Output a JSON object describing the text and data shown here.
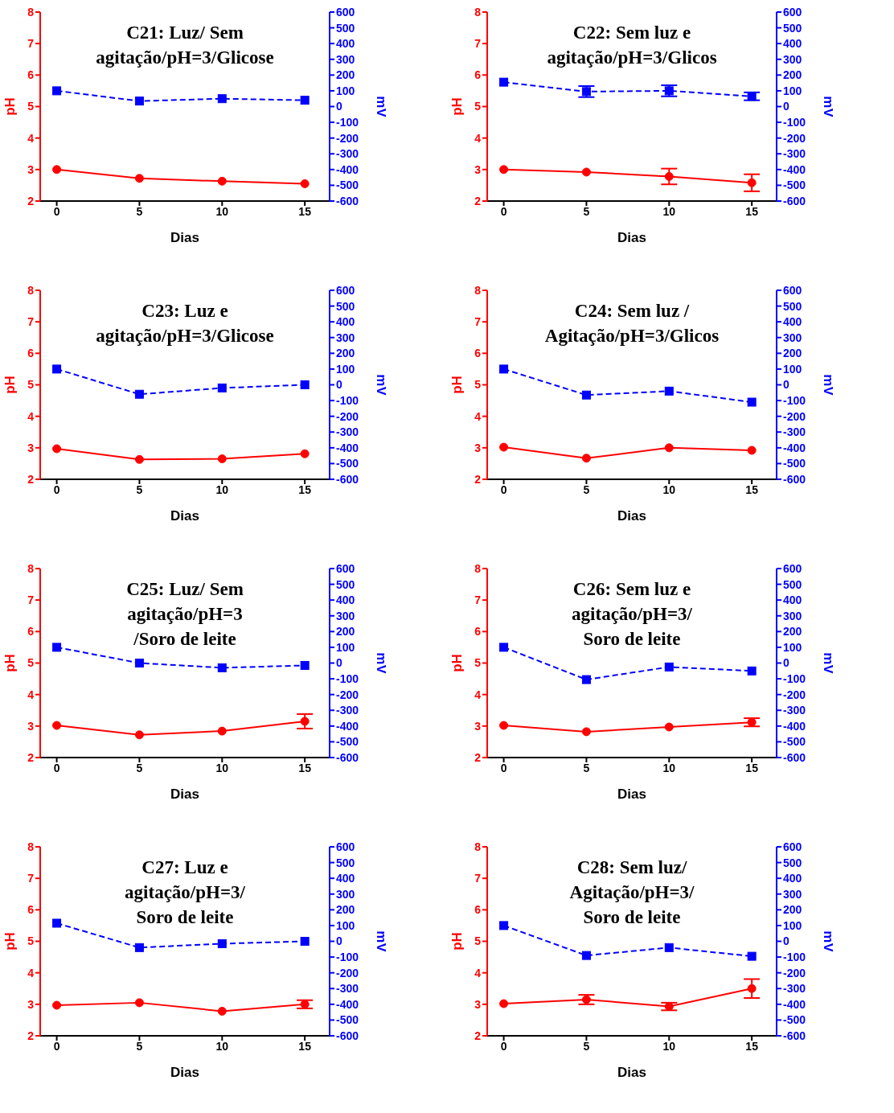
{
  "chart_data": [
    {
      "type": "line",
      "title": "C21: Luz/ Sem\nagitação/pH=3/Glicose",
      "xlabel": "Dias",
      "ylabel": "pH",
      "y2label": "mV",
      "x": [
        0,
        5,
        10,
        15
      ],
      "xlim": [
        -1,
        16.5
      ],
      "xticks": [
        0,
        5,
        10,
        15
      ],
      "ylim": [
        2,
        8
      ],
      "yticks": [
        2,
        3,
        4,
        5,
        6,
        7,
        8
      ],
      "y2lim": [
        -600,
        600
      ],
      "y2ticks": [
        -600,
        -500,
        -400,
        -300,
        -200,
        -100,
        0,
        100,
        200,
        300,
        400,
        500,
        600
      ],
      "grid": false,
      "legend": false,
      "series": [
        {
          "color": "#ff0000",
          "marker": "circle",
          "line_style": "solid",
          "values": [
            3.0,
            2.72,
            2.63,
            2.55
          ]
        },
        {
          "color": "#0000ff",
          "marker": "square",
          "line_style": "dashed",
          "axis": "y2",
          "values": [
            100,
            35,
            50,
            40
          ]
        }
      ]
    },
    {
      "type": "line",
      "title": "C22: Sem luz e\nagitação/pH=3/Glicos",
      "xlabel": "Dias",
      "ylabel": "pH",
      "y2label": "mV",
      "x": [
        0,
        5,
        10,
        15
      ],
      "xlim": [
        -1,
        16.5
      ],
      "xticks": [
        0,
        5,
        10,
        15
      ],
      "ylim": [
        2,
        8
      ],
      "yticks": [
        2,
        3,
        4,
        5,
        6,
        7,
        8
      ],
      "y2lim": [
        -600,
        600
      ],
      "y2ticks": [
        -600,
        -500,
        -400,
        -300,
        -200,
        -100,
        0,
        100,
        200,
        300,
        400,
        500,
        600
      ],
      "grid": false,
      "legend": false,
      "series": [
        {
          "color": "#ff0000",
          "marker": "circle",
          "line_style": "solid",
          "values": [
            3.0,
            2.92,
            2.78,
            2.58
          ],
          "errors": [
            null,
            null,
            0.25,
            0.27
          ]
        },
        {
          "color": "#0000ff",
          "marker": "square",
          "line_style": "dashed",
          "axis": "y2",
          "values": [
            155,
            95,
            100,
            65
          ],
          "errors": [
            null,
            35,
            35,
            25
          ]
        }
      ]
    },
    {
      "type": "line",
      "title": "C23: Luz e\nagitação/pH=3/Glicose",
      "xlabel": "Dias",
      "ylabel": "pH",
      "y2label": "mV",
      "x": [
        0,
        5,
        10,
        15
      ],
      "xlim": [
        -1,
        16.5
      ],
      "xticks": [
        0,
        5,
        10,
        15
      ],
      "ylim": [
        2,
        8
      ],
      "yticks": [
        2,
        3,
        4,
        5,
        6,
        7,
        8
      ],
      "y2lim": [
        -600,
        600
      ],
      "y2ticks": [
        -600,
        -500,
        -400,
        -300,
        -200,
        -100,
        0,
        100,
        200,
        300,
        400,
        500,
        600
      ],
      "grid": false,
      "legend": false,
      "series": [
        {
          "color": "#ff0000",
          "marker": "circle",
          "line_style": "solid",
          "values": [
            2.97,
            2.63,
            2.65,
            2.81
          ]
        },
        {
          "color": "#0000ff",
          "marker": "square",
          "line_style": "dashed",
          "axis": "y2",
          "values": [
            100,
            -60,
            -20,
            0
          ]
        }
      ]
    },
    {
      "type": "line",
      "title": "C24: Sem luz /\nAgitação/pH=3/Glicos",
      "xlabel": "Dias",
      "ylabel": "pH",
      "y2label": "mV",
      "x": [
        0,
        5,
        10,
        15
      ],
      "xlim": [
        -1,
        16.5
      ],
      "xticks": [
        0,
        5,
        10,
        15
      ],
      "ylim": [
        2,
        8
      ],
      "yticks": [
        2,
        3,
        4,
        5,
        6,
        7,
        8
      ],
      "y2lim": [
        -600,
        600
      ],
      "y2ticks": [
        -600,
        -500,
        -400,
        -300,
        -200,
        -100,
        0,
        100,
        200,
        300,
        400,
        500,
        600
      ],
      "grid": false,
      "legend": false,
      "series": [
        {
          "color": "#ff0000",
          "marker": "circle",
          "line_style": "solid",
          "values": [
            3.02,
            2.67,
            3.0,
            2.92
          ]
        },
        {
          "color": "#0000ff",
          "marker": "square",
          "line_style": "dashed",
          "axis": "y2",
          "values": [
            100,
            -65,
            -40,
            -110
          ]
        }
      ]
    },
    {
      "type": "line",
      "title": "C25: Luz/ Sem\nagitação/pH=3\n/Soro de leite",
      "xlabel": "Dias",
      "ylabel": "pH",
      "y2label": "mV",
      "x": [
        0,
        5,
        10,
        15
      ],
      "xlim": [
        -1,
        16.5
      ],
      "xticks": [
        0,
        5,
        10,
        15
      ],
      "ylim": [
        2,
        8
      ],
      "yticks": [
        2,
        3,
        4,
        5,
        6,
        7,
        8
      ],
      "y2lim": [
        -600,
        600
      ],
      "y2ticks": [
        -600,
        -500,
        -400,
        -300,
        -200,
        -100,
        0,
        100,
        200,
        300,
        400,
        500,
        600
      ],
      "grid": false,
      "legend": false,
      "series": [
        {
          "color": "#ff0000",
          "marker": "circle",
          "line_style": "solid",
          "values": [
            3.02,
            2.72,
            2.84,
            3.15
          ],
          "errors": [
            null,
            null,
            null,
            0.23
          ]
        },
        {
          "color": "#0000ff",
          "marker": "square",
          "line_style": "dashed",
          "axis": "y2",
          "values": [
            100,
            0,
            -30,
            -15
          ]
        }
      ]
    },
    {
      "type": "line",
      "title": "C26: Sem luz e\nagitação/pH=3/\nSoro de leite",
      "xlabel": "Dias",
      "ylabel": "pH",
      "y2label": "mV",
      "x": [
        0,
        5,
        10,
        15
      ],
      "xlim": [
        -1,
        16.5
      ],
      "xticks": [
        0,
        5,
        10,
        15
      ],
      "ylim": [
        2,
        8
      ],
      "yticks": [
        2,
        3,
        4,
        5,
        6,
        7,
        8
      ],
      "y2lim": [
        -600,
        600
      ],
      "y2ticks": [
        -600,
        -500,
        -400,
        -300,
        -200,
        -100,
        0,
        100,
        200,
        300,
        400,
        500,
        600
      ],
      "grid": false,
      "legend": false,
      "series": [
        {
          "color": "#ff0000",
          "marker": "circle",
          "line_style": "solid",
          "values": [
            3.02,
            2.82,
            2.97,
            3.12
          ],
          "errors": [
            null,
            null,
            null,
            0.13
          ]
        },
        {
          "color": "#0000ff",
          "marker": "square",
          "line_style": "dashed",
          "axis": "y2",
          "values": [
            100,
            -105,
            -25,
            -50
          ]
        }
      ]
    },
    {
      "type": "line",
      "title": "C27: Luz e\nagitação/pH=3/\nSoro de leite",
      "xlabel": "Dias",
      "ylabel": "pH",
      "y2label": "mV",
      "x": [
        0,
        5,
        10,
        15
      ],
      "xlim": [
        -1,
        16.5
      ],
      "xticks": [
        0,
        5,
        10,
        15
      ],
      "ylim": [
        2,
        8
      ],
      "yticks": [
        2,
        3,
        4,
        5,
        6,
        7,
        8
      ],
      "y2lim": [
        -600,
        600
      ],
      "y2ticks": [
        -600,
        -500,
        -400,
        -300,
        -200,
        -100,
        0,
        100,
        200,
        300,
        400,
        500,
        600
      ],
      "grid": false,
      "legend": false,
      "series": [
        {
          "color": "#ff0000",
          "marker": "circle",
          "line_style": "solid",
          "values": [
            2.97,
            3.05,
            2.78,
            3.0
          ],
          "errors": [
            null,
            null,
            null,
            0.13
          ]
        },
        {
          "color": "#0000ff",
          "marker": "square",
          "line_style": "dashed",
          "axis": "y2",
          "values": [
            115,
            -40,
            -15,
            0
          ]
        }
      ]
    },
    {
      "type": "line",
      "title": "C28: Sem luz/\nAgitação/pH=3/\nSoro de leite",
      "xlabel": "Dias",
      "ylabel": "pH",
      "y2label": "mV",
      "x": [
        0,
        5,
        10,
        15
      ],
      "xlim": [
        -1,
        16.5
      ],
      "xticks": [
        0,
        5,
        10,
        15
      ],
      "ylim": [
        2,
        8
      ],
      "yticks": [
        2,
        3,
        4,
        5,
        6,
        7,
        8
      ],
      "y2lim": [
        -600,
        600
      ],
      "y2ticks": [
        -600,
        -500,
        -400,
        -300,
        -200,
        -100,
        0,
        100,
        200,
        300,
        400,
        500,
        600
      ],
      "grid": false,
      "legend": false,
      "series": [
        {
          "color": "#ff0000",
          "marker": "circle",
          "line_style": "solid",
          "values": [
            3.02,
            3.15,
            2.93,
            3.5
          ],
          "errors": [
            null,
            0.15,
            0.12,
            0.3
          ]
        },
        {
          "color": "#0000ff",
          "marker": "square",
          "line_style": "dashed",
          "axis": "y2",
          "values": [
            100,
            -90,
            -40,
            -95
          ]
        }
      ]
    }
  ]
}
